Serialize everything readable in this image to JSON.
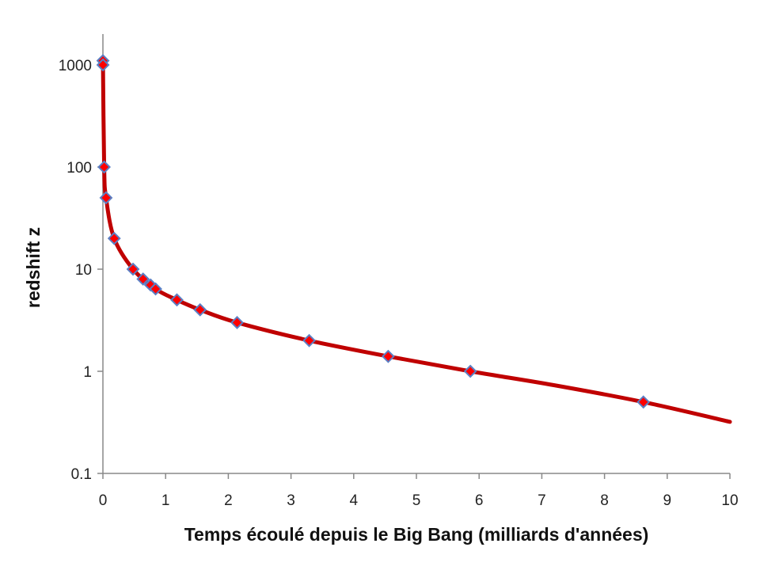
{
  "chart_data": {
    "type": "scatter",
    "xlabel": "Temps écoulé depuis le Big Bang (milliards d'années)",
    "ylabel": "redshift z",
    "xlim": [
      0,
      10
    ],
    "ylim": [
      0.1,
      1000
    ],
    "yscale": "log",
    "x_ticks": [
      "0",
      "1",
      "2",
      "3",
      "4",
      "5",
      "6",
      "7",
      "8",
      "9",
      "10"
    ],
    "y_ticks": [
      "0.1",
      "1",
      "10",
      "100",
      "1000"
    ],
    "grid": false,
    "legend": "none",
    "colors": {
      "curve": "#c00000",
      "marker_fill": "#ff0000",
      "marker_edge": "#5b7fc4",
      "axis": "#888888"
    },
    "series": [
      {
        "kind": "points",
        "x": [
          0.0004,
          0.001,
          0.02,
          0.05,
          0.18,
          0.48,
          0.64,
          0.76,
          0.84,
          1.18,
          1.55,
          2.14,
          3.29,
          4.55,
          5.86,
          8.62
        ],
        "y": [
          1100,
          1000,
          100,
          50,
          20,
          10,
          8,
          7,
          6.4,
          5,
          4,
          3,
          2,
          1.4,
          1,
          0.5
        ]
      },
      {
        "kind": "curve",
        "x": [
          0.0004,
          0.02,
          0.05,
          0.18,
          0.48,
          0.84,
          1.18,
          1.55,
          2.14,
          3.29,
          4.55,
          5.86,
          7.2,
          8.62,
          10
        ],
        "y": [
          1100,
          100,
          50,
          20,
          10,
          6.4,
          5,
          4,
          3,
          2,
          1.4,
          1,
          0.73,
          0.5,
          0.32
        ]
      }
    ]
  }
}
